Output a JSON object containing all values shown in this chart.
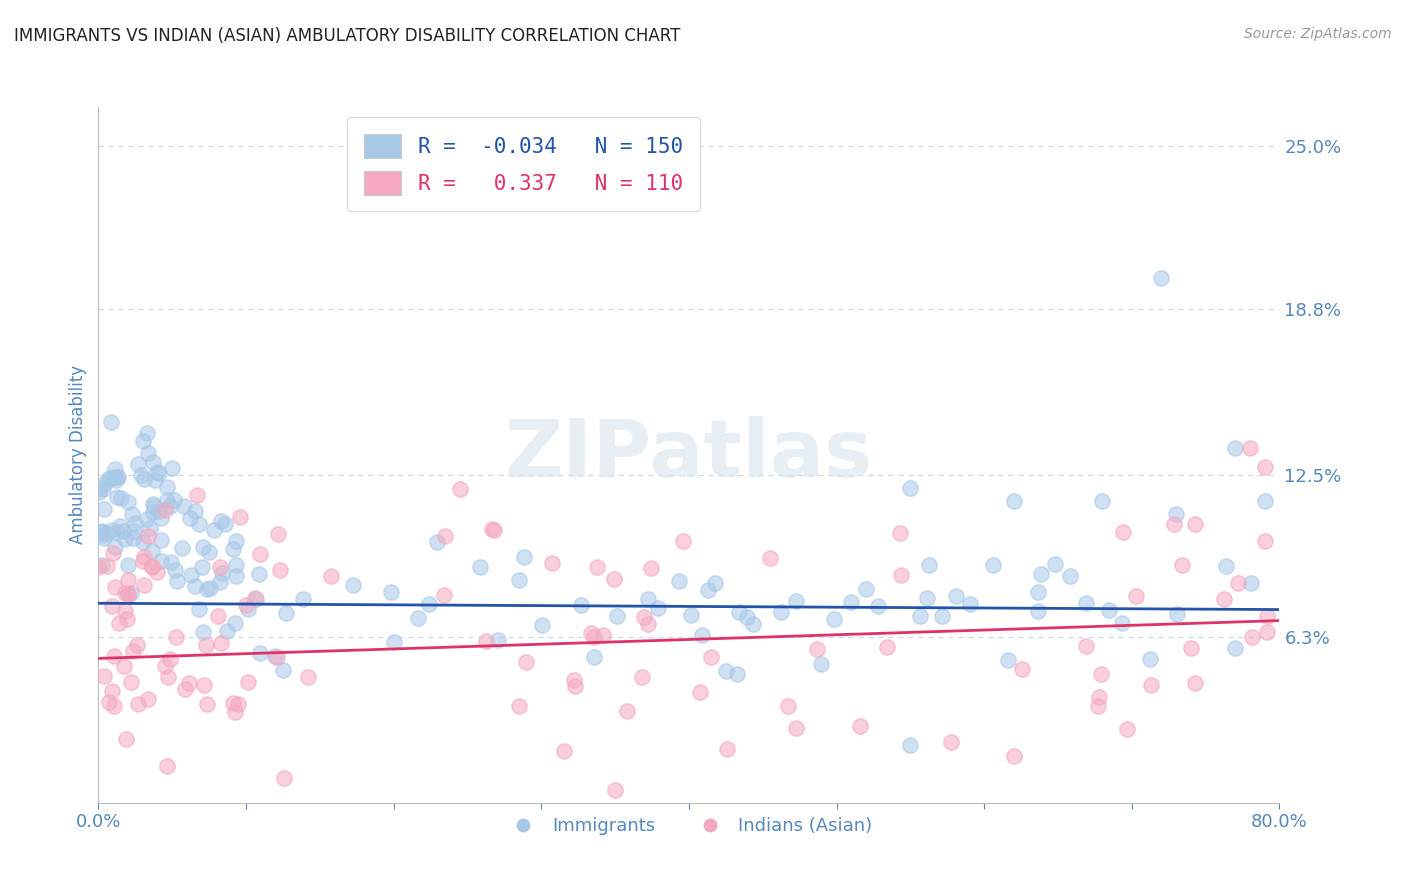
{
  "title": "IMMIGRANTS VS INDIAN (ASIAN) AMBULATORY DISABILITY CORRELATION CHART",
  "source": "Source: ZipAtlas.com",
  "ylabel": "Ambulatory Disability",
  "xlim": [
    0.0,
    0.8
  ],
  "ylim": [
    0.0,
    0.265
  ],
  "yticks": [
    0.063,
    0.125,
    0.188,
    0.25
  ],
  "ytick_labels": [
    "6.3%",
    "12.5%",
    "18.8%",
    "25.0%"
  ],
  "xticks": [
    0.0,
    0.1,
    0.2,
    0.3,
    0.4,
    0.5,
    0.6,
    0.7,
    0.8
  ],
  "blue_color": "#a8c8e8",
  "pink_color": "#f5a8be",
  "blue_line_color": "#2255aa",
  "pink_line_color": "#dd3366",
  "title_color": "#222222",
  "tick_color": "#5588bb",
  "grid_color": "#c8d8e8",
  "watermark_color": "#dde8f0",
  "R_blue": -0.034,
  "N_blue": 150,
  "R_pink": 0.337,
  "N_pink": 110,
  "blue_trend_intercept": 0.076,
  "blue_trend_slope": -0.003,
  "pink_trend_intercept": 0.055,
  "pink_trend_slope": 0.018,
  "legend_label_blue": "Immigrants",
  "legend_label_pink": "Indians (Asian)"
}
